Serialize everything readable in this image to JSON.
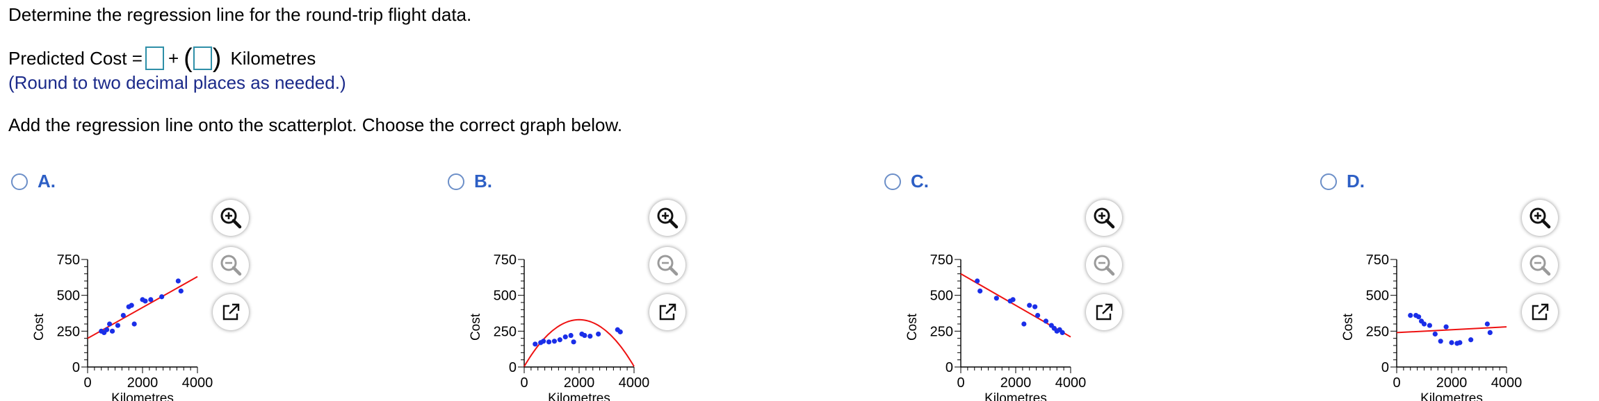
{
  "question": "Determine the regression line for the round-trip flight data.",
  "equation": {
    "lhs": "Predicted Cost =",
    "plus": "+",
    "suffix": "Kilometres"
  },
  "hint": "(Round to two decimal places as needed.)",
  "instruction": "Add the regression line onto the scatterplot. Choose the correct graph below.",
  "colors": {
    "points": "#1a2ee8",
    "line": "#ee1111",
    "option_label": "#2d5fc5",
    "hint": "#1b2a8a"
  },
  "tool_icons": [
    "zoom-in-icon",
    "zoom-out-icon",
    "popout-icon"
  ],
  "options": [
    {
      "letter": "A.",
      "ylabel": "Cost",
      "xlabel": "Kilometres",
      "points": [
        [
          500,
          250
        ],
        [
          600,
          240
        ],
        [
          700,
          260
        ],
        [
          800,
          300
        ],
        [
          900,
          250
        ],
        [
          1100,
          290
        ],
        [
          1300,
          360
        ],
        [
          1500,
          420
        ],
        [
          1600,
          430
        ],
        [
          1700,
          300
        ],
        [
          2000,
          470
        ],
        [
          2100,
          460
        ],
        [
          2300,
          470
        ],
        [
          2700,
          490
        ],
        [
          3300,
          600
        ],
        [
          3400,
          530
        ]
      ],
      "curve": {
        "kind": "line",
        "x": [
          0,
          4000
        ],
        "y": [
          200,
          630
        ]
      }
    },
    {
      "letter": "B.",
      "ylabel": "Cost",
      "xlabel": "Kilometres",
      "points": [
        [
          400,
          160
        ],
        [
          600,
          170
        ],
        [
          700,
          180
        ],
        [
          900,
          175
        ],
        [
          1100,
          180
        ],
        [
          1300,
          190
        ],
        [
          1500,
          210
        ],
        [
          1700,
          220
        ],
        [
          1800,
          175
        ],
        [
          2100,
          230
        ],
        [
          2200,
          220
        ],
        [
          2400,
          215
        ],
        [
          2700,
          230
        ],
        [
          3400,
          260
        ],
        [
          3500,
          245
        ]
      ],
      "curve": {
        "kind": "parabola",
        "vertex": [
          2000,
          330
        ],
        "a": -8.15e-05,
        "x": [
          0,
          4000
        ]
      }
    },
    {
      "letter": "C.",
      "ylabel": "Cost",
      "xlabel": "Kilometres",
      "points": [
        [
          600,
          600
        ],
        [
          700,
          530
        ],
        [
          1300,
          480
        ],
        [
          1800,
          460
        ],
        [
          1900,
          470
        ],
        [
          2300,
          300
        ],
        [
          2500,
          430
        ],
        [
          2700,
          420
        ],
        [
          2800,
          360
        ],
        [
          3100,
          320
        ],
        [
          3300,
          290
        ],
        [
          3400,
          270
        ],
        [
          3500,
          250
        ],
        [
          3600,
          260
        ],
        [
          3700,
          240
        ]
      ],
      "curve": {
        "kind": "line",
        "x": [
          0,
          4000
        ],
        "y": [
          650,
          210
        ]
      }
    },
    {
      "letter": "D.",
      "ylabel": "Cost",
      "xlabel": "Kilometres",
      "points": [
        [
          500,
          360
        ],
        [
          700,
          360
        ],
        [
          900,
          320
        ],
        [
          800,
          350
        ],
        [
          1000,
          300
        ],
        [
          1200,
          290
        ],
        [
          1400,
          230
        ],
        [
          1600,
          180
        ],
        [
          1800,
          280
        ],
        [
          2000,
          170
        ],
        [
          2200,
          165
        ],
        [
          2300,
          170
        ],
        [
          2700,
          190
        ],
        [
          3300,
          300
        ],
        [
          3400,
          240
        ]
      ],
      "curve": {
        "kind": "line",
        "x": [
          0,
          4000
        ],
        "y": [
          240,
          280
        ]
      }
    }
  ],
  "axis": {
    "xlim": [
      0,
      4000
    ],
    "ylim": [
      0,
      750
    ],
    "xticks": [
      {
        "v": 0,
        "label": "0"
      },
      {
        "v": 2000,
        "label": "2000"
      },
      {
        "v": 4000,
        "label": "4000"
      }
    ],
    "yticks": [
      {
        "v": 0,
        "label": "0"
      },
      {
        "v": 250,
        "label": "250"
      },
      {
        "v": 500,
        "label": "500"
      },
      {
        "v": 750,
        "label": "750"
      }
    ]
  }
}
